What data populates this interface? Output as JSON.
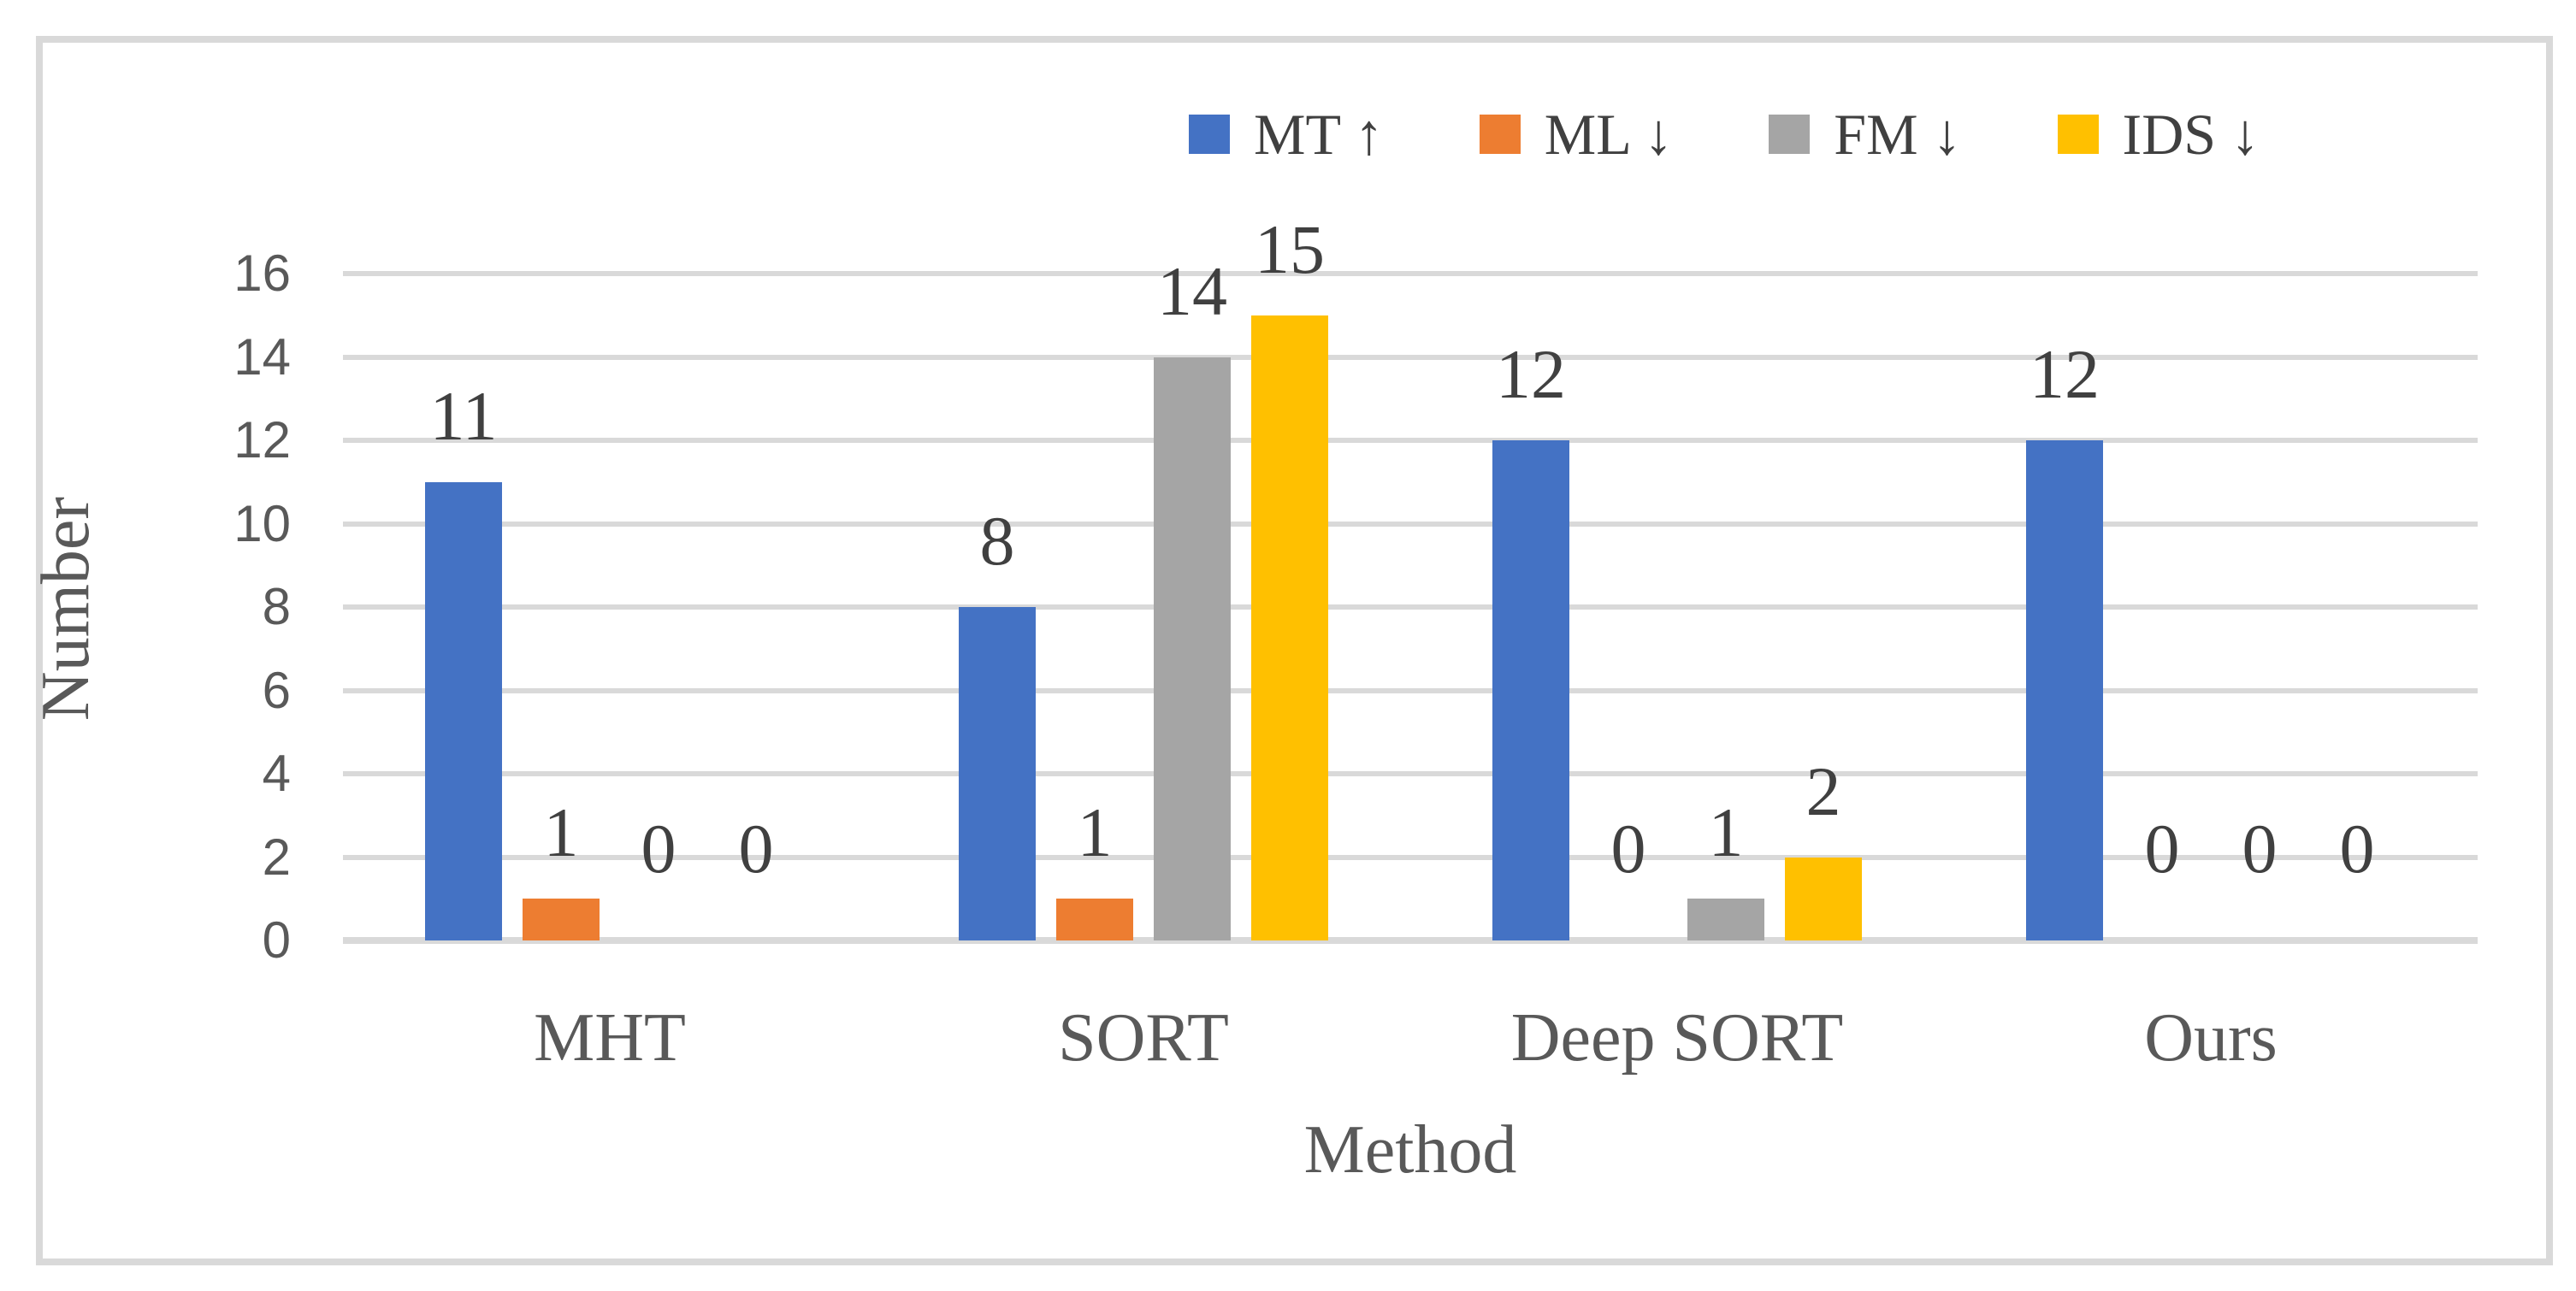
{
  "chart_data": {
    "type": "bar",
    "title": "",
    "xlabel": "Method",
    "ylabel": "Number",
    "categories": [
      "MHT",
      "SORT",
      "Deep SORT",
      "Ours"
    ],
    "series": [
      {
        "name": "MT",
        "legend_label": "MT ↑",
        "color": "#4472C4",
        "values": [
          11,
          8,
          12,
          12
        ]
      },
      {
        "name": "ML",
        "legend_label": "ML ↓",
        "color": "#ED7D31",
        "values": [
          1,
          1,
          0,
          0
        ]
      },
      {
        "name": "FM",
        "legend_label": "FM ↓",
        "color": "#A5A5A5",
        "values": [
          0,
          14,
          1,
          0
        ]
      },
      {
        "name": "IDS",
        "legend_label": "IDS ↓",
        "color": "#FFC000",
        "values": [
          0,
          15,
          2,
          0
        ]
      }
    ],
    "ylim": [
      0,
      16
    ],
    "yticks": [
      0,
      2,
      4,
      6,
      8,
      10,
      12,
      14,
      16
    ],
    "ytick_labels": [
      "0",
      "2",
      "4",
      "6",
      "8",
      "10",
      "12",
      "14",
      "16"
    ],
    "grid": "horizontal",
    "legend_position": "top",
    "data_labels": true
  },
  "colors": {
    "gridline": "#D9D9D9",
    "frame_border": "#D9D9D9",
    "tick_text": "#595959",
    "label_text": "#404040"
  }
}
